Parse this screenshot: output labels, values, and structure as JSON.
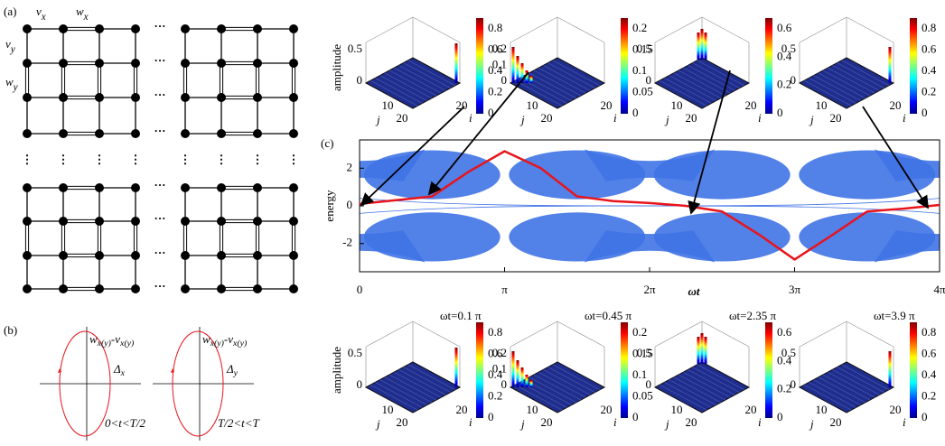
{
  "panel_a": {
    "label": "(a)",
    "vx": [
      "v",
      "x"
    ],
    "wx": [
      "w",
      "x"
    ],
    "vy": [
      "v",
      "y"
    ],
    "wy": [
      "w",
      "y"
    ]
  },
  "panel_b": {
    "label": "(b)",
    "left": {
      "axis_label": [
        "w",
        "x(y)",
        "-v",
        "x(y)"
      ],
      "delta": [
        "Δ",
        "x"
      ],
      "condition": "0<t<T/2"
    },
    "right": {
      "axis_label": [
        "w",
        "x(y)",
        "-v",
        "x(y)"
      ],
      "delta": [
        "Δ",
        "y"
      ],
      "condition": "T/2<t<T"
    }
  },
  "chart_data": {
    "type": "line",
    "panel_label": "(c)",
    "ylabel": "energy",
    "xlabel": "ωt",
    "xlim": [
      0,
      12.566
    ],
    "xticks": [
      0,
      {
        "value": 3.1416,
        "label": "π"
      },
      {
        "value": 6.2832,
        "label": "2π"
      },
      {
        "value": 9.4248,
        "label": "3π"
      },
      {
        "value": 12.566,
        "label": "4π"
      }
    ],
    "ylim": [
      -3.5,
      3.5
    ],
    "yticks": [
      -2,
      0,
      2
    ],
    "x": [
      0,
      0.785,
      1.571,
      2.356,
      3.142,
      3.927,
      4.712,
      5.498,
      6.283,
      7.069,
      7.854,
      8.639,
      9.425,
      10.21,
      10.996,
      11.781,
      12.566
    ],
    "values": [
      0.1,
      0.3,
      0.5,
      1.8,
      2.9,
      2.0,
      0.5,
      0.25,
      0.15,
      0.0,
      -0.3,
      -1.5,
      -2.85,
      -1.6,
      -0.3,
      -0.15,
      0.05
    ],
    "color": "#e8141c"
  },
  "insets": {
    "ylabel": "amplitude",
    "top": [
      {
        "z_ticks": [
          "0.5",
          "0"
        ],
        "cbar_ticks": [
          "0.8",
          "0.6",
          "0.4",
          "0.2",
          "0"
        ],
        "j_ticks": [
          "10",
          "20"
        ],
        "j_label": "j",
        "i_ticks": [
          "20"
        ],
        "i_label": "i"
      },
      {
        "z_ticks": [
          "0.2",
          "0.1",
          "0"
        ],
        "cbar_ticks": [
          "0.2",
          "0.15",
          "0.1",
          "0.05",
          "0"
        ],
        "j_ticks": [
          "10",
          "20"
        ],
        "j_label": "j",
        "i_ticks": [
          "20"
        ],
        "i_label": "i"
      },
      {
        "z_ticks": [
          "0.5",
          "0"
        ],
        "cbar_ticks": [
          "0.6",
          "0.4",
          "0.2",
          "0"
        ],
        "j_ticks": [
          "10",
          "20"
        ],
        "j_label": "j",
        "i_ticks": [
          "20"
        ],
        "i_label": "i"
      },
      {
        "z_ticks": [
          "0.5",
          "0"
        ],
        "cbar_ticks": [
          "0.8",
          "0.6",
          "0.4",
          "0.2",
          "0"
        ],
        "j_ticks": [
          "10",
          "20"
        ],
        "j_label": "j",
        "i_ticks": [
          "20"
        ],
        "i_label": "i"
      }
    ],
    "bottom": [
      {
        "time_label": "ωt=0.1 π",
        "z_ticks": [
          "0.5",
          "0"
        ],
        "cbar_ticks": [
          "0.8",
          "0.6",
          "0.4",
          "0.2",
          "0"
        ],
        "j_ticks": [
          "10",
          "20"
        ],
        "j_label": "j",
        "i_ticks": [
          "20"
        ],
        "i_label": "i"
      },
      {
        "time_label": "ωt=0.45 π",
        "z_ticks": [
          "0.2",
          "0.1",
          "0"
        ],
        "cbar_ticks": [
          "0.2",
          "0.15",
          "0.1",
          "0.05",
          "0"
        ],
        "j_ticks": [
          "10",
          "20"
        ],
        "j_label": "j",
        "i_ticks": [
          "20"
        ],
        "i_label": "i"
      },
      {
        "time_label": "ωt=2.35 π",
        "z_ticks": [
          "0.5",
          "0"
        ],
        "cbar_ticks": [
          "0.6",
          "0.4",
          "0.2",
          "0"
        ],
        "j_ticks": [
          "10",
          "20"
        ],
        "j_label": "j",
        "i_ticks": [
          "20"
        ],
        "i_label": "i"
      },
      {
        "time_label": "ωt=3.9 π",
        "z_ticks": [
          "0.5",
          "0"
        ],
        "cbar_ticks": [
          "0.8",
          "0.6",
          "0.4",
          "0.2",
          "0"
        ],
        "j_ticks": [
          "10",
          "20"
        ],
        "j_label": "j",
        "i_ticks": [
          "20"
        ],
        "i_label": "i"
      }
    ]
  }
}
